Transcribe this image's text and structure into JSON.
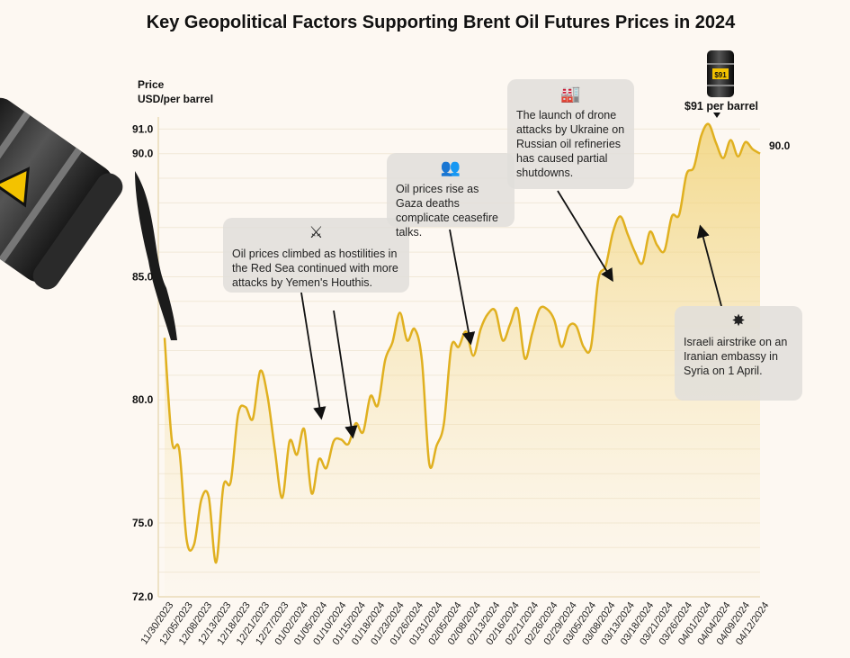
{
  "chart_data": {
    "type": "line",
    "title": "Key Geopolitical Factors Supporting Brent Oil Futures Prices in 2024",
    "ylabel": "Price",
    "ylabel_unit": "USD/per barrel",
    "ylim": [
      72,
      91.2
    ],
    "y_ticks": [
      "91.0",
      "90.0",
      "85.0",
      "80.0",
      "75.0",
      "72.0"
    ],
    "y_tick_values": [
      91,
      90,
      85,
      80,
      75,
      72
    ],
    "x_tick_labels": [
      "11/30/2023",
      "12/05/2023",
      "12/08/2023",
      "12/13/2023",
      "12/18/2023",
      "12/21/2023",
      "12/27/2023",
      "01/02/2024",
      "01/05/2024",
      "01/10/2024",
      "01/15/2024",
      "01/18/2024",
      "01/23/2024",
      "01/26/2024",
      "01/31/2024",
      "02/05/2024",
      "02/08/2024",
      "02/13/2024",
      "02/16/2024",
      "02/21/2024",
      "02/26/2024",
      "02/29/2024",
      "03/05/2024",
      "03/08/2024",
      "03/13/2024",
      "03/18/2024",
      "03/21/2024",
      "03/26/2024",
      "04/01/2024",
      "04/04/2024",
      "04/09/2024",
      "04/12/2024"
    ],
    "series": [
      {
        "name": "Brent Oil Futures",
        "color": "#e0b020",
        "values": [
          82.52,
          78.32,
          77.96,
          74.31,
          74.12,
          75.95,
          76.06,
          73.39,
          76.5,
          76.68,
          79.42,
          79.71,
          79.23,
          81.17,
          80.15,
          77.96,
          76.02,
          78.32,
          77.77,
          78.8,
          76.2,
          77.59,
          77.23,
          78.32,
          78.39,
          78.21,
          79.05,
          78.69,
          80.15,
          79.78,
          81.61,
          82.34,
          83.54,
          82.41,
          82.88,
          81.61,
          77.41,
          78.14,
          79.05,
          82.15,
          82.15,
          82.77,
          81.79,
          82.88,
          83.5,
          83.61,
          82.41,
          83.07,
          83.69,
          81.68,
          82.7,
          83.69,
          83.69,
          83.25,
          82.15,
          82.99,
          82.99,
          82.15,
          82.15,
          84.89,
          85.44,
          86.82,
          87.45,
          86.72,
          85.99,
          85.55,
          86.82,
          86.28,
          86.06,
          87.45,
          87.52,
          89.16,
          89.45,
          90.73,
          91.2,
          90.44,
          89.82,
          90.55,
          89.89,
          90.47,
          90.18,
          90.0
        ]
      }
    ],
    "end_label": "90.0",
    "peak_label": "$91 per barrel",
    "barrel_label": "$91",
    "annotations": [
      {
        "icon": "swords",
        "text": "Oil prices climbed as hostilities in the Red Sea continued with more attacks by Yemen's Houthis."
      },
      {
        "icon": "people",
        "text": "Oil prices rise as Gaza deaths complicate ceasefire talks."
      },
      {
        "icon": "factory",
        "text": "The launch of drone attacks by Ukraine on Russian oil refineries has caused partial shutdowns."
      },
      {
        "icon": "explosion",
        "text": "Israeli airstrike on an Iranian embassy in Syria on 1 April."
      }
    ],
    "grid": true
  }
}
